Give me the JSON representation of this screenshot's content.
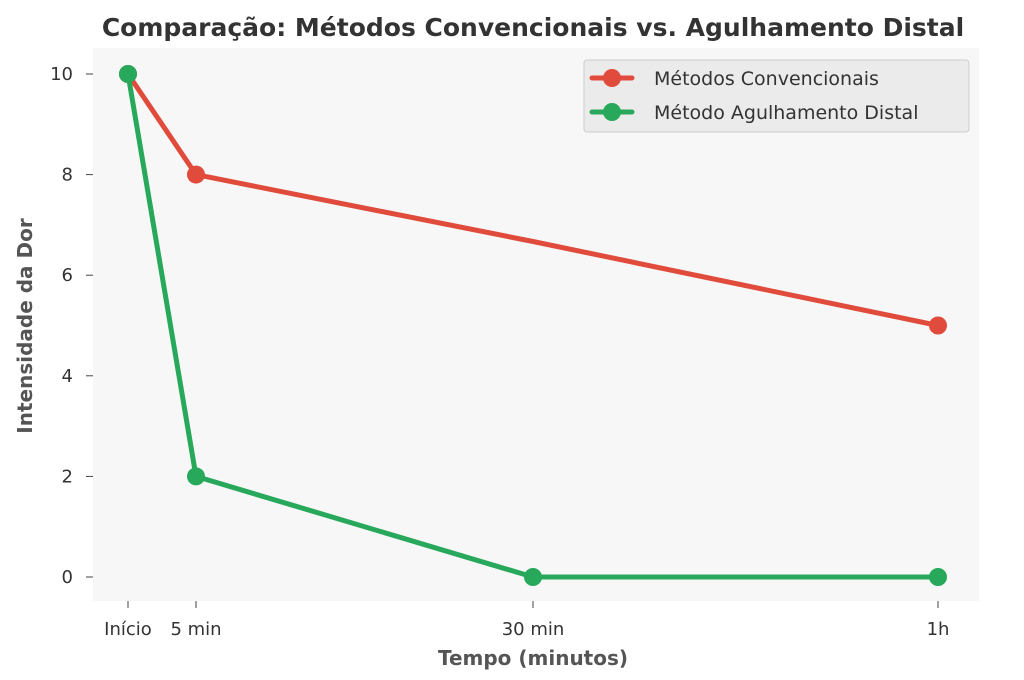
{
  "chart_data": {
    "type": "line",
    "title": "Comparação: Métodos Convencionais vs. Agulhamento Distal",
    "xlabel": "Tempo (minutos)",
    "ylabel": "Intensidade da Dor",
    "x": [
      0,
      5,
      30,
      60
    ],
    "categories": [
      "Início",
      "5 min",
      "30 min",
      "1h"
    ],
    "ylim": [
      0,
      10
    ],
    "yticks": [
      0,
      2,
      4,
      6,
      8,
      10
    ],
    "grid": false,
    "legend_position": "top-right",
    "series": [
      {
        "name": "Métodos Convencionais",
        "values": [
          10,
          8,
          6.67,
          5
        ],
        "color": "#e04b3c"
      },
      {
        "name": "Método Agulhamento Distal",
        "values": [
          10,
          2,
          0,
          0
        ],
        "color": "#27a85a"
      }
    ]
  }
}
